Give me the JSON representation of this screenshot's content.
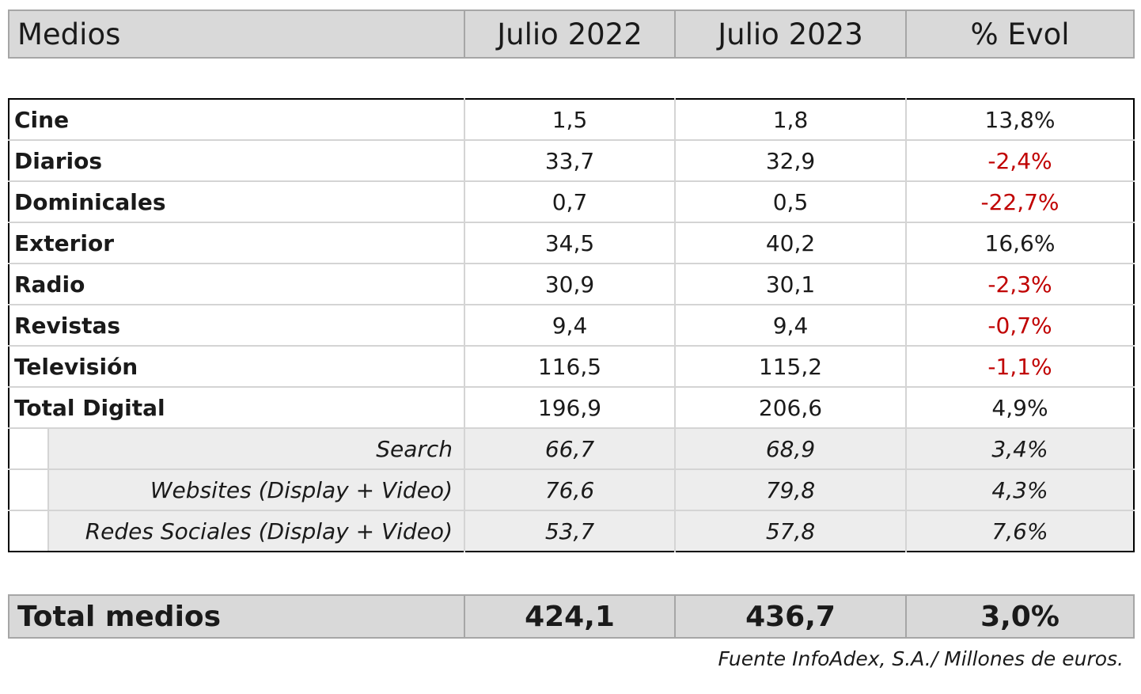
{
  "header": {
    "col_label": "Medios",
    "col_2022": "Julio 2022",
    "col_2023": "Julio 2023",
    "col_evol": "% Evol"
  },
  "rows": [
    {
      "label": "Cine",
      "v2022": "1,5",
      "v2023": "1,8",
      "evol": "13,8%",
      "negative": false
    },
    {
      "label": "Diarios",
      "v2022": "33,7",
      "v2023": "32,9",
      "evol": "-2,4%",
      "negative": true
    },
    {
      "label": "Dominicales",
      "v2022": "0,7",
      "v2023": "0,5",
      "evol": "-22,7%",
      "negative": true
    },
    {
      "label": "Exterior",
      "v2022": "34,5",
      "v2023": "40,2",
      "evol": "16,6%",
      "negative": false
    },
    {
      "label": "Radio",
      "v2022": "30,9",
      "v2023": "30,1",
      "evol": "-2,3%",
      "negative": true
    },
    {
      "label": "Revistas",
      "v2022": "9,4",
      "v2023": "9,4",
      "evol": "-0,7%",
      "negative": true
    },
    {
      "label": "Televisión",
      "v2022": "116,5",
      "v2023": "115,2",
      "evol": "-1,1%",
      "negative": true
    },
    {
      "label": "Total Digital",
      "v2022": "196,9",
      "v2023": "206,6",
      "evol": "4,9%",
      "negative": false
    }
  ],
  "sub_rows": [
    {
      "label": "Search",
      "v2022": "66,7",
      "v2023": "68,9",
      "evol": "3,4%"
    },
    {
      "label": "Websites (Display + Video)",
      "v2022": "76,6",
      "v2023": "79,8",
      "evol": "4,3%"
    },
    {
      "label": "Redes Sociales (Display + Video)",
      "v2022": "53,7",
      "v2023": "57,8",
      "evol": "7,6%"
    }
  ],
  "total": {
    "label": "Total medios",
    "v2022": "424,1",
    "v2023": "436,7",
    "evol": "3,0%"
  },
  "source": "Fuente InfoAdex, S.A./ Millones de euros.",
  "colors": {
    "negative": "#c00000",
    "header_bg": "#d9d9d9",
    "sub_bg": "#ededed"
  }
}
